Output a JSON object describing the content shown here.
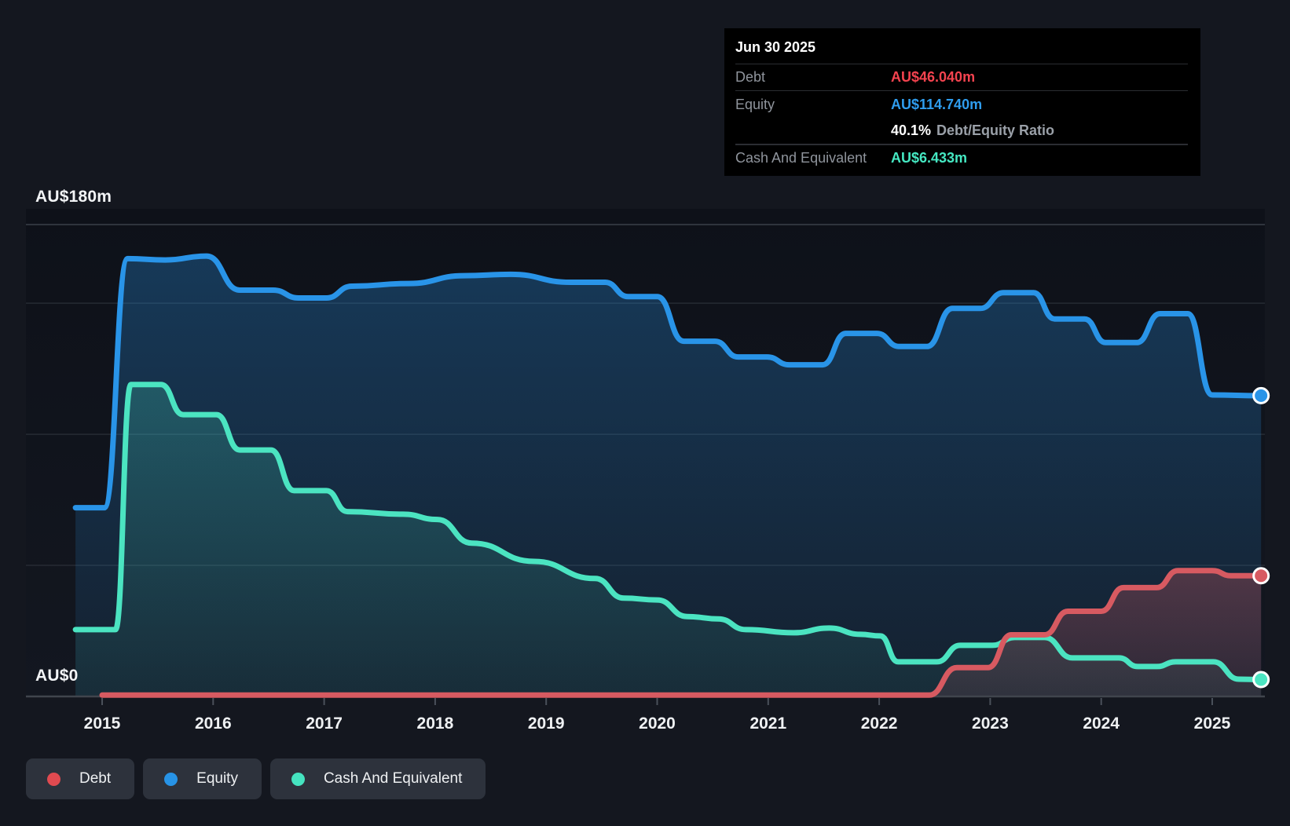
{
  "tooltip": {
    "date": "Jun 30 2025",
    "debt_label": "Debt",
    "debt_value": "AU$46.040m",
    "equity_label": "Equity",
    "equity_value": "AU$114.740m",
    "ratio_value": "40.1%",
    "ratio_label": "Debt/Equity Ratio",
    "cash_label": "Cash And Equivalent",
    "cash_value": "AU$6.433m"
  },
  "legend": {
    "debt": "Debt",
    "equity": "Equity",
    "cash": "Cash And Equivalent"
  },
  "colors": {
    "debt": "#d75a61",
    "debt_bright": "#f4434f",
    "equity": "#2994e8",
    "equity_bright": "#2f9dee",
    "cash": "#4be4c1",
    "background": "#14171f",
    "tooltip_bg": "#000000",
    "gridline": "#262b33",
    "axis": "#40454d"
  },
  "chart_data": {
    "type": "area",
    "unit": "AU$ millions",
    "y_axis": {
      "min": 0,
      "max": 180,
      "top_label": "AU$180m",
      "zero_label": "AU$0",
      "gridline_values": [
        180,
        150,
        100,
        50
      ]
    },
    "x_axis": {
      "tick_years": [
        2015,
        2016,
        2017,
        2018,
        2019,
        2020,
        2021,
        2022,
        2023,
        2024,
        2025
      ]
    },
    "legend_position": "bottom-left",
    "grid": true,
    "series": [
      {
        "name": "Equity",
        "color": "#2994e8",
        "end_value": 114.74,
        "points": [
          [
            2014.76,
            72
          ],
          [
            2015.02,
            72
          ],
          [
            2015.23,
            167
          ],
          [
            2015.57,
            166.5
          ],
          [
            2015.94,
            168
          ],
          [
            2016.24,
            155
          ],
          [
            2016.54,
            155
          ],
          [
            2016.77,
            152
          ],
          [
            2017.02,
            152
          ],
          [
            2017.25,
            156.5
          ],
          [
            2017.76,
            157.5
          ],
          [
            2018.26,
            160.5
          ],
          [
            2018.68,
            161
          ],
          [
            2019.22,
            158
          ],
          [
            2019.53,
            158
          ],
          [
            2019.74,
            152.5
          ],
          [
            2020.0,
            152.5
          ],
          [
            2020.24,
            135.5
          ],
          [
            2020.52,
            135.5
          ],
          [
            2020.73,
            129.5
          ],
          [
            2020.99,
            129.5
          ],
          [
            2021.19,
            126.5
          ],
          [
            2021.49,
            126.5
          ],
          [
            2021.7,
            138.5
          ],
          [
            2021.98,
            138.5
          ],
          [
            2022.18,
            133.5
          ],
          [
            2022.43,
            133.5
          ],
          [
            2022.66,
            148
          ],
          [
            2022.91,
            148
          ],
          [
            2023.12,
            154
          ],
          [
            2023.39,
            154
          ],
          [
            2023.58,
            144
          ],
          [
            2023.85,
            144
          ],
          [
            2024.04,
            135
          ],
          [
            2024.32,
            135
          ],
          [
            2024.53,
            146
          ],
          [
            2024.78,
            146
          ],
          [
            2025.0,
            115
          ],
          [
            2025.44,
            114.74
          ]
        ]
      },
      {
        "name": "Cash And Equivalent",
        "color": "#4be4c1",
        "end_value": 6.433,
        "points": [
          [
            2014.76,
            25.5
          ],
          [
            2015.12,
            25.5
          ],
          [
            2015.26,
            119
          ],
          [
            2015.53,
            119
          ],
          [
            2015.73,
            107.5
          ],
          [
            2016.03,
            107.5
          ],
          [
            2016.24,
            94
          ],
          [
            2016.52,
            94
          ],
          [
            2016.73,
            78.5
          ],
          [
            2017.02,
            78.5
          ],
          [
            2017.21,
            70.5
          ],
          [
            2017.71,
            69.5
          ],
          [
            2018.02,
            67.5
          ],
          [
            2018.33,
            58.5
          ],
          [
            2018.89,
            51.5
          ],
          [
            2019.44,
            45
          ],
          [
            2019.7,
            37.5
          ],
          [
            2020.0,
            36.8
          ],
          [
            2020.27,
            30.5
          ],
          [
            2020.55,
            29.6
          ],
          [
            2020.8,
            25.5
          ],
          [
            2021.23,
            24.3
          ],
          [
            2021.55,
            26.1
          ],
          [
            2021.83,
            23.7
          ],
          [
            2022.01,
            23.1
          ],
          [
            2022.17,
            13.2
          ],
          [
            2022.52,
            13.2
          ],
          [
            2022.73,
            19.5
          ],
          [
            2023.02,
            19.5
          ],
          [
            2023.22,
            22.5
          ],
          [
            2023.49,
            22.5
          ],
          [
            2023.74,
            14.7
          ],
          [
            2024.16,
            14.7
          ],
          [
            2024.33,
            11.4
          ],
          [
            2024.5,
            11.4
          ],
          [
            2024.67,
            13.2
          ],
          [
            2025.01,
            13.2
          ],
          [
            2025.24,
            6.6
          ],
          [
            2025.44,
            6.433
          ]
        ]
      },
      {
        "name": "Debt",
        "color": "#d75a61",
        "end_value": 46.04,
        "points": [
          [
            2015.0,
            0.5
          ],
          [
            2022.45,
            0.5
          ],
          [
            2022.7,
            11
          ],
          [
            2022.98,
            11
          ],
          [
            2023.19,
            23.5
          ],
          [
            2023.49,
            23.5
          ],
          [
            2023.7,
            32.5
          ],
          [
            2024.0,
            32.5
          ],
          [
            2024.2,
            41.5
          ],
          [
            2024.5,
            41.5
          ],
          [
            2024.69,
            48
          ],
          [
            2025.0,
            48
          ],
          [
            2025.17,
            46.04
          ],
          [
            2025.44,
            46.04
          ]
        ]
      }
    ]
  }
}
